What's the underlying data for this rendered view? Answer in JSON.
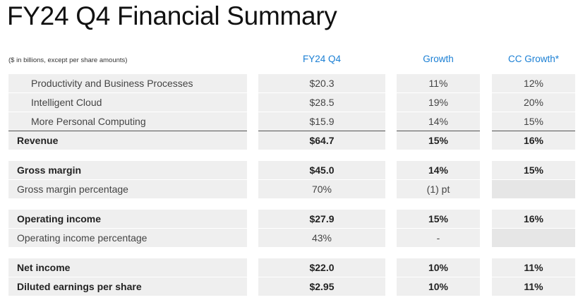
{
  "title": "FY24 Q4 Financial Summary",
  "units_note": "($ in billions, except per share amounts)",
  "columns": {
    "c1": "FY24 Q4",
    "c2": "Growth",
    "c3": "CC Growth*"
  },
  "colors": {
    "header_accent": "#1a7fd4",
    "cell_bg": "#efefef"
  },
  "rows": [
    {
      "label": "Productivity and Business Processes",
      "v1": "$20.3",
      "v2": "11%",
      "v3": "12%"
    },
    {
      "label": "Intelligent Cloud",
      "v1": "$28.5",
      "v2": "19%",
      "v3": "20%"
    },
    {
      "label": "More Personal Computing",
      "v1": "$15.9",
      "v2": "14%",
      "v3": "15%"
    },
    {
      "label": "Revenue",
      "v1": "$64.7",
      "v2": "15%",
      "v3": "16%"
    },
    {
      "label": "Gross margin",
      "v1": "$45.0",
      "v2": "14%",
      "v3": "15%"
    },
    {
      "label": "Gross margin percentage",
      "v1": "70%",
      "v2": "(1) pt",
      "v3": ""
    },
    {
      "label": "Operating income",
      "v1": "$27.9",
      "v2": "15%",
      "v3": "16%"
    },
    {
      "label": "Operating income percentage",
      "v1": "43%",
      "v2": "-",
      "v3": ""
    },
    {
      "label": "Net income",
      "v1": "$22.0",
      "v2": "10%",
      "v3": "11%"
    },
    {
      "label": "Diluted earnings per share",
      "v1": "$2.95",
      "v2": "10%",
      "v3": "11%"
    }
  ]
}
